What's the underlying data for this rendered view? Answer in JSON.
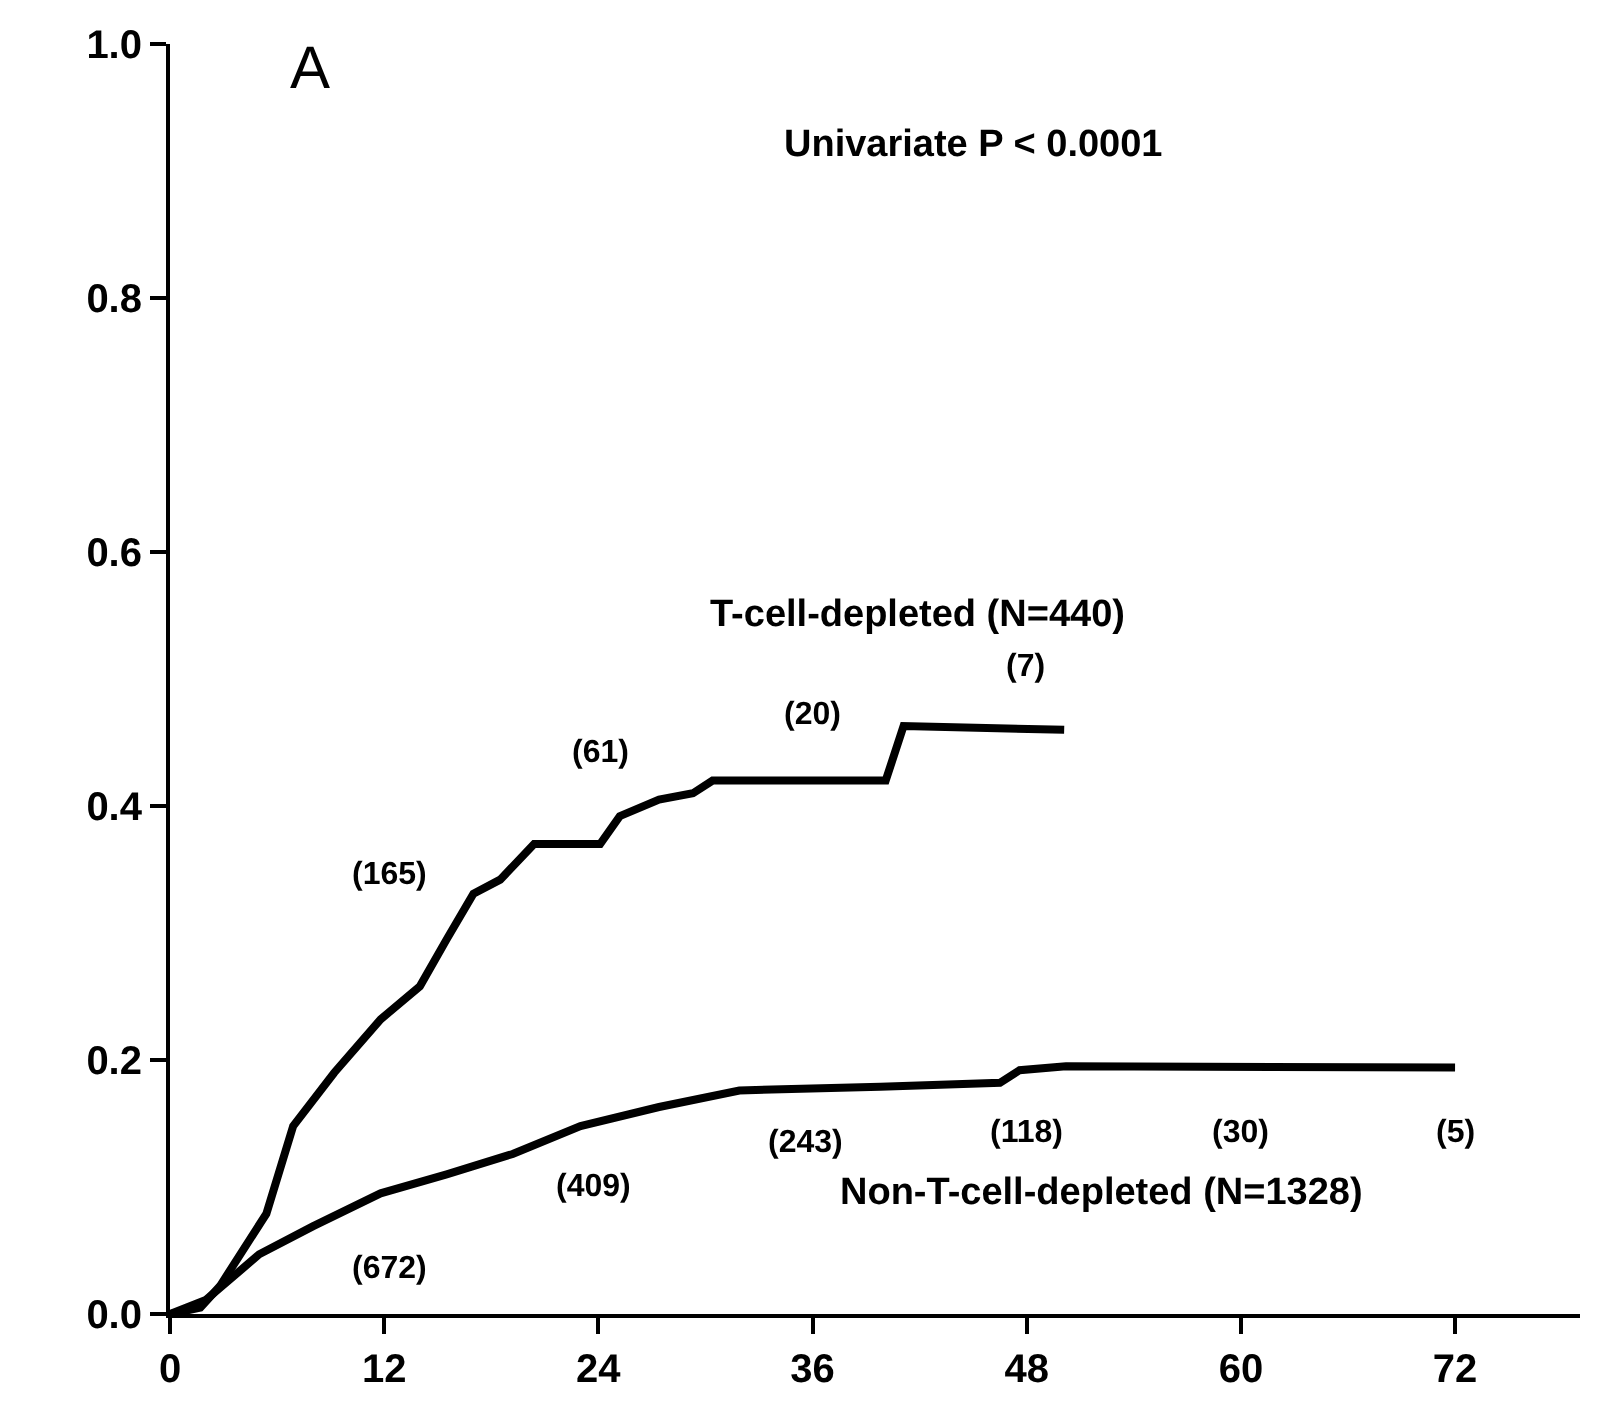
{
  "chart_data": {
    "type": "line",
    "series": [
      {
        "name": "T-cell-depleted (N=440)",
        "color": "#000000",
        "x": [
          0,
          1.7,
          2.8,
          5.4,
          6.9,
          9.2,
          11.8,
          14.0,
          15.5,
          17.0,
          18.5,
          20.4,
          24.1,
          25.2,
          27.4,
          29.3,
          30.4,
          40.1,
          41.1,
          50.1
        ],
        "values": [
          0,
          0.005,
          0.022,
          0.079,
          0.148,
          0.19,
          0.232,
          0.258,
          0.295,
          0.331,
          0.342,
          0.37,
          0.37,
          0.392,
          0.405,
          0.41,
          0.42,
          0.42,
          0.463,
          0.46
        ]
      },
      {
        "name": "Non-T-cell-depleted (N=1328)",
        "color": "#000000",
        "x": [
          0,
          2.0,
          5.0,
          8.0,
          11.8,
          15.5,
          19.2,
          23.0,
          27.4,
          31.9,
          39.8,
          46.5,
          47.6,
          50.2,
          72
        ],
        "values": [
          0,
          0.011,
          0.047,
          0.069,
          0.095,
          0.11,
          0.126,
          0.148,
          0.163,
          0.176,
          0.179,
          0.182,
          0.192,
          0.195,
          0.194
        ]
      }
    ],
    "annotations": [
      "A",
      "Univariate P < 0.0001",
      "(165)",
      "(61)",
      "(20)",
      "(7)",
      "(672)",
      "(409)",
      "(243)",
      "(118)",
      "(30)",
      "(5)"
    ],
    "xlim": [
      0,
      79
    ],
    "xticks": [
      0,
      12,
      24,
      36,
      48,
      60,
      72
    ],
    "ylim": [
      0,
      1
    ],
    "yticks": [
      {
        "value": 0,
        "label": "0.0"
      },
      {
        "value": 0.2,
        "label": "0.2"
      },
      {
        "value": 0.4,
        "label": "0.4"
      },
      {
        "value": 0.6,
        "label": "0.6"
      },
      {
        "value": 0.8,
        "label": "0.8"
      },
      {
        "value": 1,
        "label": "1.0"
      }
    ],
    "legend": false,
    "marker": "none",
    "line_style": "solid"
  }
}
